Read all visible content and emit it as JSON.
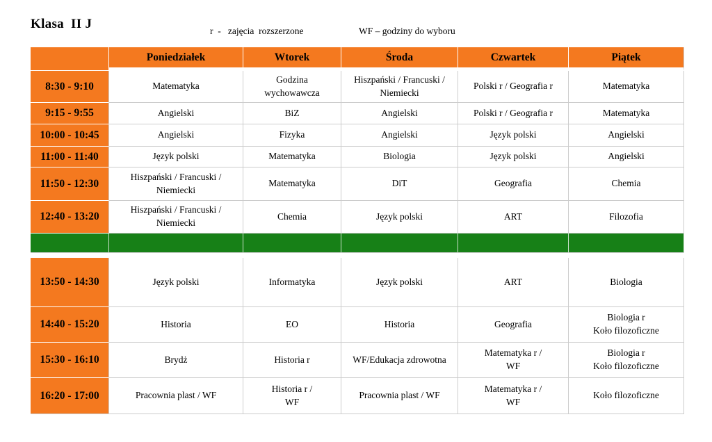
{
  "header": {
    "title": "Klasa  II J",
    "legend_extended": "r  -   zajęcia  rozszerzone",
    "legend_wf": "WF – godziny do wyboru"
  },
  "colors": {
    "orange": "#F4791F",
    "green": "#178017",
    "border": "#CCCCCC",
    "text": "#000000"
  },
  "timetable": {
    "day_headers": [
      "Poniedziałek",
      "Wtorek",
      "Środa",
      "Czwartek",
      "Piątek"
    ],
    "rows": [
      {
        "time": "8:30 - 9:10",
        "subjects": [
          "Matematyka",
          "Godzina\nwychowawcza",
          "Hiszpański / Francuski /\nNiemiecki",
          "Polski  r /  Geografia r",
          "Matematyka"
        ]
      },
      {
        "time": "9:15 - 9:55",
        "subjects": [
          "Angielski",
          "BiZ",
          "Angielski",
          "Polski  r /  Geografia r",
          "Matematyka"
        ]
      },
      {
        "time": "10:00 - 10:45",
        "subjects": [
          "Angielski",
          "Fizyka",
          "Angielski",
          "Język polski",
          "Angielski"
        ]
      },
      {
        "time": "11:00 - 11:40",
        "subjects": [
          "Język polski",
          "Matematyka",
          "Biologia",
          "Język polski",
          "Angielski"
        ]
      },
      {
        "time": "11:50 - 12:30",
        "subjects": [
          "Hiszpański / Francuski /\nNiemiecki",
          "Matematyka",
          "DiT",
          "Geografia",
          "Chemia"
        ]
      },
      {
        "time": "12:40 - 13:20",
        "subjects": [
          "Hiszpański / Francuski /\nNiemiecki",
          "Chemia",
          "Język polski",
          "ART",
          "Filozofia"
        ]
      },
      {
        "type": "break"
      },
      {
        "time": "13:50 - 14:30",
        "subjects": [
          "Język polski",
          "Informatyka",
          "Język polski",
          "ART",
          "Biologia"
        ]
      },
      {
        "time": "14:40 - 15:20",
        "subjects": [
          "Historia",
          "EO",
          "Historia",
          "Geografia",
          "Biologia r\nKoło filozoficzne"
        ]
      },
      {
        "time": "15:30 - 16:10",
        "subjects": [
          "Brydż",
          "Historia r",
          "WF/Edukacja zdrowotna",
          "Matematyka r /\nWF",
          "Biologia  r\nKoło filozoficzne"
        ]
      },
      {
        "time": "16:20 - 17:00",
        "subjects": [
          "Pracownia plast / WF",
          "Historia r /\nWF",
          "Pracownia plast / WF",
          "Matematyka r /\nWF",
          "Koło filozoficzne"
        ]
      }
    ]
  }
}
